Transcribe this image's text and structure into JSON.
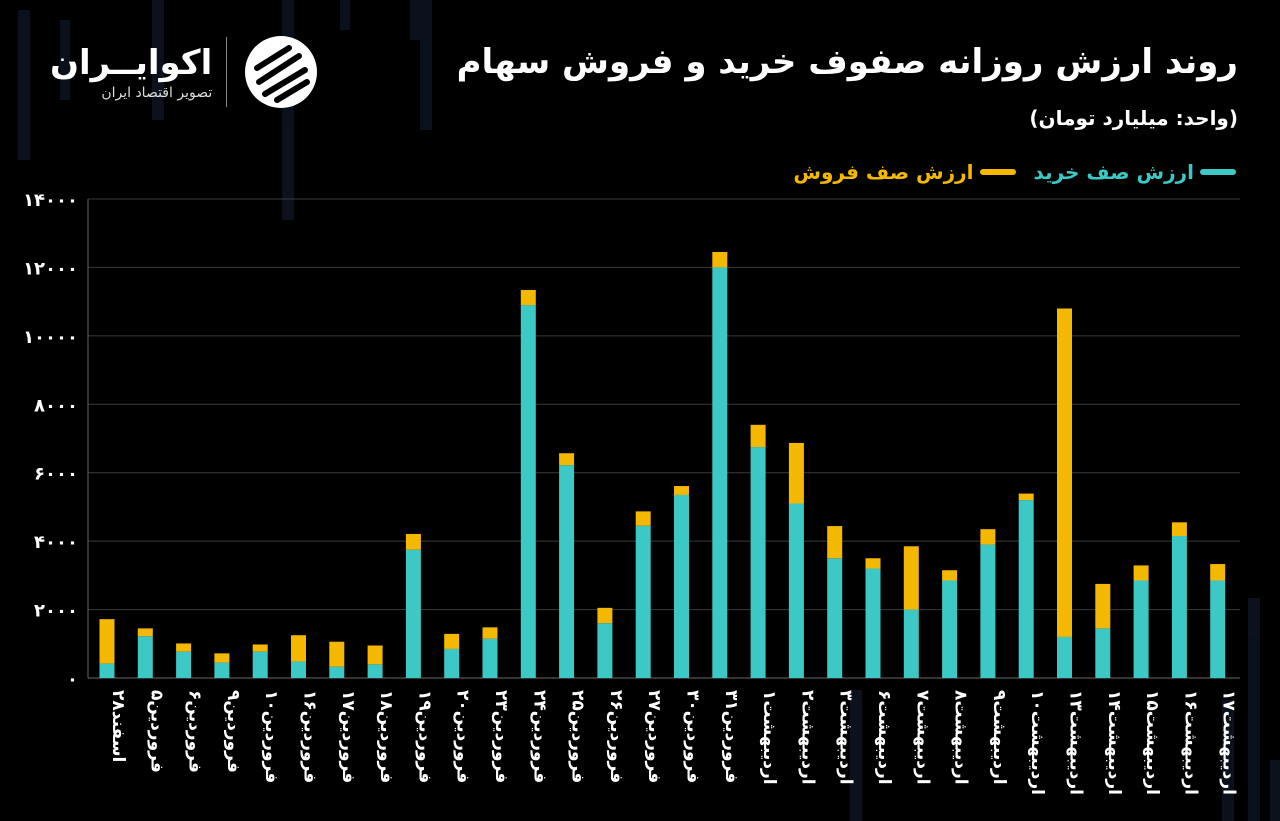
{
  "header": {
    "title": "روند ارزش روزانه صفوف خرید و فروش سهام",
    "unit": "(واحد: میلیارد تومان)"
  },
  "logo": {
    "name": "اکوایــران",
    "tagline": "تصویر اقتصاد ایران",
    "icon": "ecoiran-swirl-icon"
  },
  "colors": {
    "buy": "#3cc8c4",
    "sell": "#f5b800",
    "background": "#000000",
    "grid": "#3a3a3a"
  },
  "chart_data": {
    "type": "bar",
    "stacked": true,
    "legend_position": "top-right",
    "grid": true,
    "ylim": [
      0,
      14000
    ],
    "yticks": [
      "۰",
      "۲۰۰۰",
      "۴۰۰۰",
      "۶۰۰۰",
      "۸۰۰۰",
      "۱۰۰۰۰",
      "۱۲۰۰۰",
      "۱۴۰۰۰"
    ],
    "categories": [
      "اسفند۲۸",
      "فروردین۵",
      "فروردین۶",
      "فروردین۹",
      "فروردین۱۰",
      "فروردین۱۶",
      "فروردین۱۷",
      "فروردین۱۸",
      "فروردین۱۹",
      "فروردین۲۰",
      "فروردین۲۳",
      "فروردین۲۴",
      "فروردین۲۵",
      "فروردین۲۶",
      "فروردین۲۷",
      "فروردین۳۰",
      "فروردین۳۱",
      "اردیبهشت۱",
      "اردیبهشت۲",
      "اردیبهشت۳",
      "اردیبهشت۶",
      "اردیبهشت۷",
      "اردیبهشت۸",
      "اردیبهشت۹",
      "اردیبهشت۱۰",
      "اردیبهشت۱۳",
      "اردیبهشت۱۴",
      "اردیبهشت۱۵",
      "اردیبهشت۱۶",
      "اردیبهشت۱۷"
    ],
    "series": [
      {
        "name": "ارزش صف خرید",
        "values": [
          420,
          1220,
          770,
          450,
          770,
          480,
          330,
          400,
          3750,
          850,
          1150,
          10900,
          6220,
          1600,
          4450,
          5350,
          12000,
          6750,
          5100,
          3500,
          3200,
          2000,
          2850,
          3900,
          5200,
          1200,
          1450,
          2850,
          4150,
          2850
        ]
      },
      {
        "name": "ارزش صف فروش",
        "values": [
          1300,
          230,
          240,
          270,
          210,
          770,
          730,
          550,
          460,
          440,
          330,
          440,
          350,
          450,
          420,
          260,
          450,
          650,
          1770,
          940,
          300,
          1850,
          300,
          450,
          190,
          9600,
          1300,
          440,
          400,
          480
        ]
      }
    ]
  }
}
